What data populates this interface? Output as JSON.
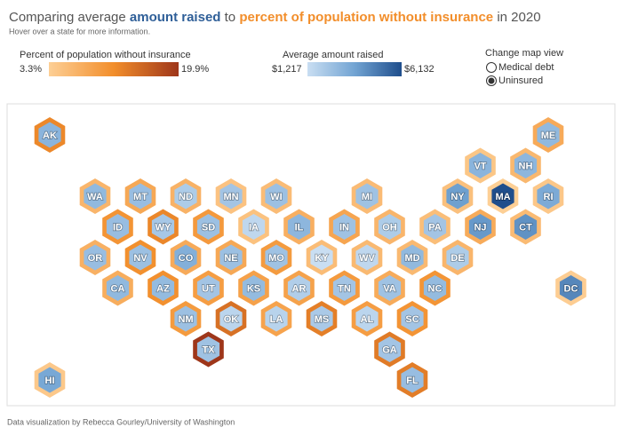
{
  "chart_data": {
    "type": "hexmap",
    "title": [
      "Comparing average ",
      "amount raised",
      " to ",
      "percent of population without insurance",
      " in 2020"
    ],
    "title_colors": [
      "#555555",
      "#2f5f98",
      "#555555",
      "#f28e2b",
      "#555555"
    ],
    "subtitle": "Hover over a state for more information.",
    "uninsured_legend": {
      "title": "Percent of population without insurance",
      "min": {
        "value": 3.3,
        "label": "3.3%"
      },
      "max": {
        "value": 19.9,
        "label": "19.9%"
      },
      "colors": [
        "#fdcf95",
        "#f28e2b",
        "#9e361a"
      ]
    },
    "raised_legend": {
      "title": "Average amount raised",
      "min": {
        "value": 1217,
        "label": "$1,217"
      },
      "max": {
        "value": 6132,
        "label": "$6,132"
      },
      "colors": [
        "#c9def2",
        "#72a4d3",
        "#1f4e8c"
      ]
    },
    "map_view": {
      "title": "Change map view",
      "options": [
        "Medical debt",
        "Uninsured"
      ],
      "selected": 1
    },
    "states": [
      {
        "name": "AK",
        "uninsured": 12.2,
        "raised": 3000
      },
      {
        "name": "ME",
        "uninsured": 8.0,
        "raised": 2800
      },
      {
        "name": "VT",
        "uninsured": 4.5,
        "raised": 3000
      },
      {
        "name": "NH",
        "uninsured": 6.3,
        "raised": 2900
      },
      {
        "name": "WA",
        "uninsured": 6.6,
        "raised": 2800
      },
      {
        "name": "MT",
        "uninsured": 8.3,
        "raised": 2600
      },
      {
        "name": "ND",
        "uninsured": 7.0,
        "raised": 2000
      },
      {
        "name": "MN",
        "uninsured": 4.9,
        "raised": 2300
      },
      {
        "name": "WI",
        "uninsured": 5.7,
        "raised": 2500
      },
      {
        "name": "MI",
        "uninsured": 5.8,
        "raised": 2400
      },
      {
        "name": "NY",
        "uninsured": 5.2,
        "raised": 3800
      },
      {
        "name": "MA",
        "uninsured": 3.3,
        "raised": 6132
      },
      {
        "name": "RI",
        "uninsured": 4.3,
        "raised": 3400
      },
      {
        "name": "ID",
        "uninsured": 10.8,
        "raised": 2600
      },
      {
        "name": "WY",
        "uninsured": 12.3,
        "raised": 2200
      },
      {
        "name": "SD",
        "uninsured": 10.2,
        "raised": 2500
      },
      {
        "name": "IA",
        "uninsured": 5.0,
        "raised": 1500
      },
      {
        "name": "IL",
        "uninsured": 7.4,
        "raised": 2900
      },
      {
        "name": "IN",
        "uninsured": 8.7,
        "raised": 2400
      },
      {
        "name": "OH",
        "uninsured": 6.6,
        "raised": 2000
      },
      {
        "name": "PA",
        "uninsured": 5.5,
        "raised": 2300
      },
      {
        "name": "NJ",
        "uninsured": 7.9,
        "raised": 4000
      },
      {
        "name": "CT",
        "uninsured": 5.9,
        "raised": 4200
      },
      {
        "name": "OR",
        "uninsured": 7.2,
        "raised": 2600
      },
      {
        "name": "NV",
        "uninsured": 11.4,
        "raised": 2500
      },
      {
        "name": "CO",
        "uninsured": 8.0,
        "raised": 3200
      },
      {
        "name": "NE",
        "uninsured": 8.3,
        "raised": 2500
      },
      {
        "name": "MO",
        "uninsured": 10.0,
        "raised": 2400
      },
      {
        "name": "KY",
        "uninsured": 5.7,
        "raised": 1217
      },
      {
        "name": "WV",
        "uninsured": 6.1,
        "raised": 1500
      },
      {
        "name": "MD",
        "uninsured": 6.1,
        "raised": 2800
      },
      {
        "name": "DE",
        "uninsured": 6.6,
        "raised": 2000
      },
      {
        "name": "CA",
        "uninsured": 7.7,
        "raised": 2800
      },
      {
        "name": "AZ",
        "uninsured": 11.3,
        "raised": 2700
      },
      {
        "name": "UT",
        "uninsured": 9.7,
        "raised": 2300
      },
      {
        "name": "KS",
        "uninsured": 9.2,
        "raised": 2700
      },
      {
        "name": "AR",
        "uninsured": 9.1,
        "raised": 1900
      },
      {
        "name": "TN",
        "uninsured": 10.1,
        "raised": 2300
      },
      {
        "name": "VA",
        "uninsured": 7.9,
        "raised": 2400
      },
      {
        "name": "NC",
        "uninsured": 10.7,
        "raised": 2700
      },
      {
        "name": "DC",
        "uninsured": 3.5,
        "raised": 4500
      },
      {
        "name": "NM",
        "uninsured": 10.0,
        "raised": 2500
      },
      {
        "name": "OK",
        "uninsured": 14.3,
        "raised": 1600
      },
      {
        "name": "LA",
        "uninsured": 8.9,
        "raised": 1700
      },
      {
        "name": "MS",
        "uninsured": 13.0,
        "raised": 2100
      },
      {
        "name": "AL",
        "uninsured": 9.7,
        "raised": 1600
      },
      {
        "name": "SC",
        "uninsured": 10.8,
        "raised": 2300
      },
      {
        "name": "TX",
        "uninsured": 19.9,
        "raised": 2400
      },
      {
        "name": "GA",
        "uninsured": 13.4,
        "raised": 2300
      },
      {
        "name": "HI",
        "uninsured": 4.2,
        "raised": 3500
      },
      {
        "name": "FL",
        "uninsured": 13.2,
        "raised": 2600
      }
    ],
    "footer": "Data visualization by Rebecca Gourley/University of Washington"
  }
}
